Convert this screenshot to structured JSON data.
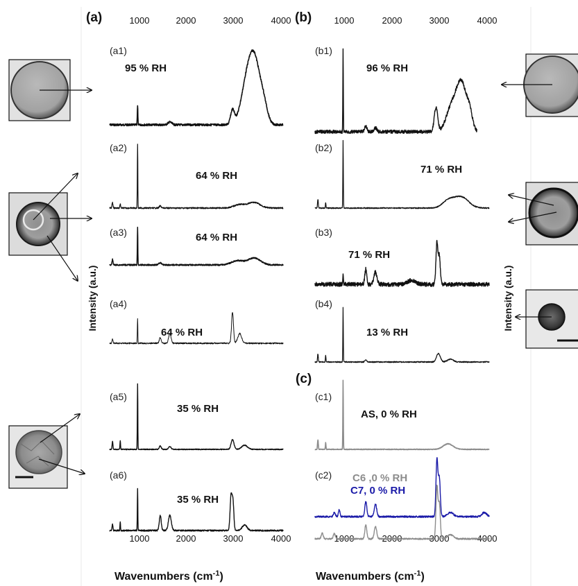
{
  "panels": {
    "a": "(a)",
    "b": "(b)",
    "c": "(c)"
  },
  "axes": {
    "xlabel_main": "Wavenumbers (cm",
    "xlabel_sup": "-1",
    "xlabel_close": ")",
    "ylabel": "Intensity (a.u.)",
    "x_ticks": [
      "1000",
      "2000",
      "3000",
      "4000"
    ]
  },
  "colors": {
    "black": "#111111",
    "gray": "#8c8c8c",
    "blue": "#1a1aa8"
  },
  "chart_data": {
    "type": "line",
    "xlim": [
      400,
      4000
    ],
    "xlabel": "Wavenumbers (cm-1)",
    "ylabel": "Intensity (a.u.)",
    "grid": false,
    "spectra": [
      {
        "id": "a1",
        "label": "(a1)",
        "condition": "95 % RH",
        "color": "black",
        "sharp_peak_x": 980,
        "broad_band_x": [
          3000,
          3700
        ],
        "broad_band_peak_x": 3400,
        "relative_peak_height": 1.0
      },
      {
        "id": "a2",
        "label": "(a2)",
        "condition": "64 % RH",
        "color": "black",
        "sharp_peak_x": 980,
        "relative_peak_height": 1.0
      },
      {
        "id": "a3",
        "label": "(a3)",
        "condition": "64 % RH",
        "color": "black",
        "sharp_peak_x": 980,
        "relative_peak_height": 1.0
      },
      {
        "id": "a4",
        "label": "(a4)",
        "condition": "64 % RH",
        "color": "black",
        "sharp_peak_x": 980,
        "ch_peak_x": 2950,
        "relative_peak_height": 1.0
      },
      {
        "id": "a5",
        "label": "(a5)",
        "condition": "35 % RH",
        "color": "black",
        "sharp_peak_x": 980,
        "relative_peak_height": 1.0
      },
      {
        "id": "a6",
        "label": "(a6)",
        "condition": "35 % RH",
        "color": "black",
        "sharp_peak_x": 980,
        "ch_peak_x": 2950,
        "relative_peak_height": 1.0
      },
      {
        "id": "b1",
        "label": "(b1)",
        "condition": "96 % RH",
        "color": "black",
        "sharp_peak_x": 980,
        "broad_band_peak_x": 3400,
        "x_end": 3750
      },
      {
        "id": "b2",
        "label": "(b2)",
        "condition": "71 % RH",
        "color": "black",
        "sharp_peak_x": 980
      },
      {
        "id": "b3",
        "label": "(b3)",
        "condition": "71 % RH",
        "color": "black",
        "ch_peak_x": 2950
      },
      {
        "id": "b4",
        "label": "(b4)",
        "condition": "13 % RH",
        "color": "black",
        "sharp_peak_x": 980
      },
      {
        "id": "c1",
        "label": "(c1)",
        "condition": "AS, 0 % RH",
        "color": "gray",
        "sharp_peak_x": 980
      },
      {
        "id": "c2",
        "label": "(c2)",
        "conditions": [
          {
            "name": "C6 ,0 % RH",
            "color": "gray"
          },
          {
            "name": "C7, 0 % RH",
            "color": "blue"
          }
        ],
        "ch_peak_x": 2950
      }
    ]
  }
}
